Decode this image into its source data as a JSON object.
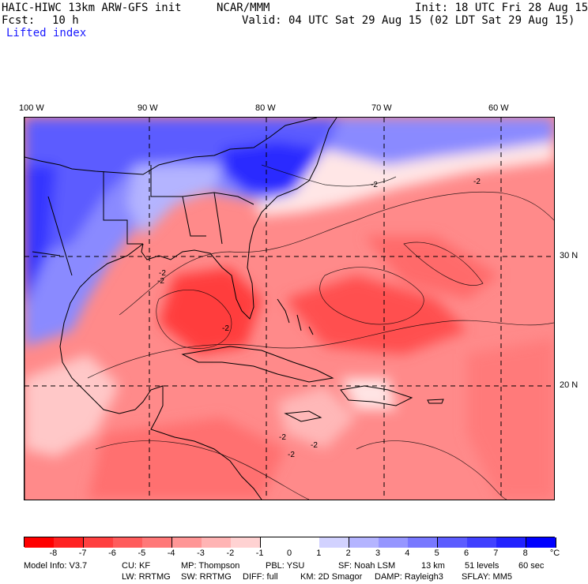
{
  "header": {
    "model": "HAIC-HIWC 13km ARW-GFS init",
    "org": "NCAR/MMM",
    "init": "Init: 18 UTC Fri 28 Aug 15",
    "fcst_label": "Fcst:",
    "fcst_value": "10 h",
    "valid": "Valid: 04 UTC Sat 29 Aug 15 (02 LDT Sat 29 Aug 15)",
    "field": "Lifted index"
  },
  "map": {
    "lon_labels": [
      "100 W",
      "90 W",
      "80 W",
      "70 W",
      "60 W"
    ],
    "lat_labels": [
      "30 N",
      "20 N"
    ],
    "contour_labels": [
      "-2",
      "-2",
      "-2",
      "-2",
      "-2",
      "-2",
      "-2",
      "-2"
    ]
  },
  "colorbar": {
    "labels": [
      "-8",
      "-7",
      "-6",
      "-5",
      "-4",
      "-3",
      "-2",
      "-1",
      "0",
      "1",
      "2",
      "3",
      "4",
      "5",
      "6",
      "7",
      "8"
    ],
    "unit": "°C",
    "colors": [
      "#ff0000",
      "#ff2222",
      "#ff4040",
      "#ff5c5c",
      "#ff7878",
      "#ff9696",
      "#ffb4b4",
      "#ffd2d2",
      "#ffffff",
      "#d2d2ff",
      "#b4b4ff",
      "#9696ff",
      "#7878ff",
      "#5c5cff",
      "#4040ff",
      "#2222ff",
      "#0000ff"
    ]
  },
  "footer": {
    "line1": [
      "Model Info: V3.7",
      "CU: KF",
      "MP: Thompson",
      "PBL: YSU",
      "SF: Noah LSM",
      "13 km",
      "51 levels",
      "60 sec"
    ],
    "line2": [
      "LW: RRTMG",
      "SW: RRTMG",
      "DIFF: full",
      "KM: 2D Smagor",
      "DAMP: Rayleigh3",
      "SFLAY: MM5"
    ]
  }
}
